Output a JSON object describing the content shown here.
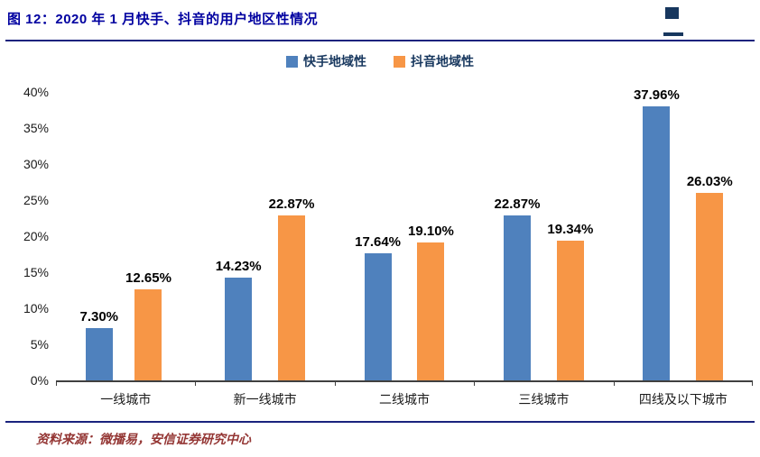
{
  "header": {
    "title": "图 12：2020 年 1 月快手、抖音的用户地区性情况"
  },
  "legend": [
    {
      "label": "快手地域性",
      "color": "#4F81BD"
    },
    {
      "label": "抖音地域性",
      "color": "#F79646"
    }
  ],
  "chart_data": {
    "type": "bar",
    "title": "2020 年 1 月快手、抖音的用户地区性情况",
    "categories": [
      "一线城市",
      "新一线城市",
      "二线城市",
      "三线城市",
      "四线及以下城市"
    ],
    "series": [
      {
        "name": "快手地域性",
        "color": "#4F81BD",
        "values": [
          7.3,
          14.23,
          17.64,
          22.87,
          37.96
        ]
      },
      {
        "name": "抖音地域性",
        "color": "#F79646",
        "values": [
          12.65,
          22.87,
          19.1,
          19.34,
          26.03
        ]
      }
    ],
    "value_labels": [
      [
        "7.30%",
        "14.23%",
        "17.64%",
        "22.87%",
        "37.96%"
      ],
      [
        "12.65%",
        "22.87%",
        "19.10%",
        "19.34%",
        "26.03%"
      ]
    ],
    "xlabel": "",
    "ylabel": "",
    "ylim": [
      0,
      40
    ],
    "ytick_step": 5,
    "ytick_labels": [
      "0%",
      "5%",
      "10%",
      "15%",
      "20%",
      "25%",
      "30%",
      "35%",
      "40%"
    ],
    "grid": false,
    "legend_position": "top"
  },
  "footer": {
    "source": "资料来源：微播易，安信证券研究中心"
  },
  "colors": {
    "title_text": "#0000A0",
    "rule": "#1A237E",
    "legend_text": "#17375E",
    "axis": "#404040",
    "footer_text": "#943634",
    "bar_blue": "#4F81BD",
    "bar_orange": "#F79646"
  }
}
